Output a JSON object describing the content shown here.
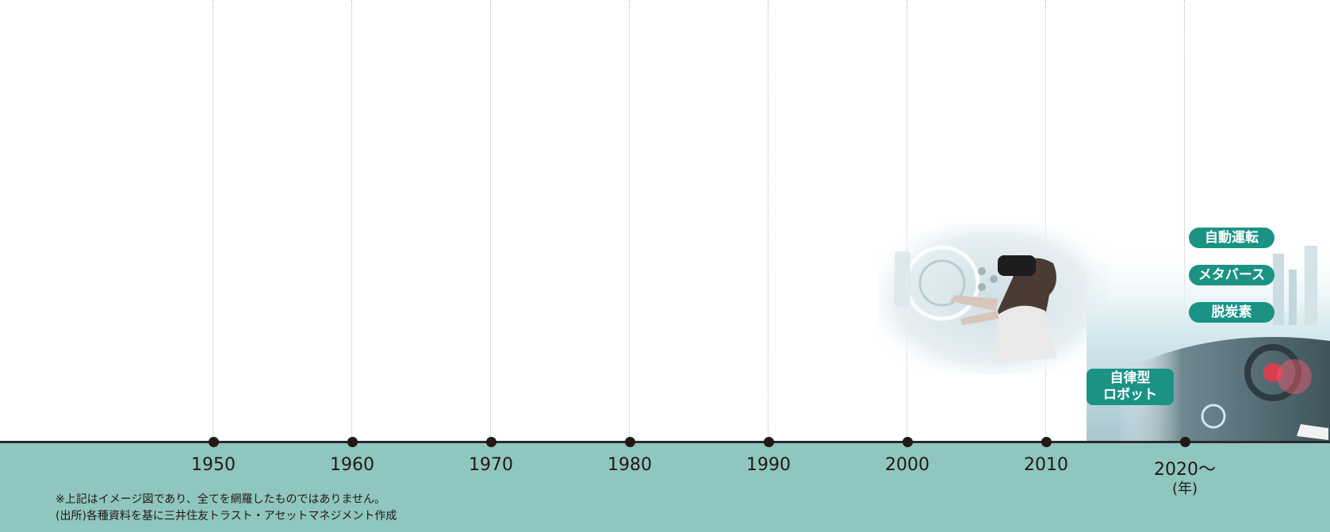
{
  "timeline": {
    "years": [
      "1950",
      "1960",
      "1970",
      "1980",
      "1990",
      "2000",
      "2010",
      "2020〜"
    ],
    "unit": "(年)"
  },
  "tags": {
    "autonomous_driving": "自動運転",
    "metaverse": "メタバース",
    "decarbonization": "脱炭素",
    "autonomous_robot": [
      "自律型",
      "ロボット"
    ]
  },
  "notes": {
    "disclaimer": "※上記はイメージ図であり、全てを網羅したものではありません。",
    "source": "(出所)各種資料を基に三井住友トラスト・アセットマネジメント作成"
  },
  "colors": {
    "band": "#8fc6bf",
    "tag": "#1a9385",
    "axis": "#231815"
  }
}
